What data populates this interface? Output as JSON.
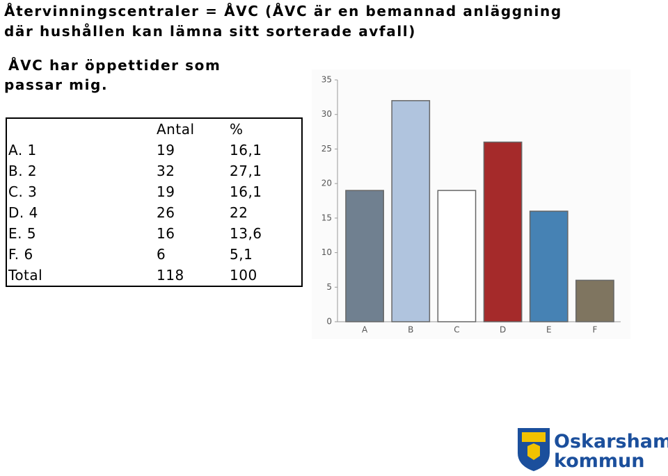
{
  "title": "Återvinningscentraler = ÅVC (ÅVC är en bemannad anläggning där hushållen kan lämna sitt sorterade avfall)",
  "question": "ÅVC har öppettider som passar mig.",
  "table": {
    "header": [
      "Antal",
      "%"
    ],
    "rows": [
      [
        "A. 1",
        "19",
        "16,1"
      ],
      [
        "B. 2",
        "32",
        "27,1"
      ],
      [
        "C. 3",
        "19",
        "16,1"
      ],
      [
        "D. 4",
        "26",
        "22"
      ],
      [
        "E. 5",
        "16",
        "13,6"
      ],
      [
        "F. 6",
        "6",
        "5,1"
      ],
      [
        "Total",
        "118",
        "100"
      ]
    ]
  },
  "chart_data": {
    "type": "bar",
    "categories": [
      "A",
      "B",
      "C",
      "D",
      "E",
      "F"
    ],
    "values": [
      19,
      32,
      19,
      26,
      16,
      6
    ],
    "colors": [
      "#708090",
      "#b0c4de",
      "#ffffff",
      "#a52a2a",
      "#4682b4",
      "#7f7560"
    ],
    "ylim": [
      0,
      35
    ],
    "yticks": [
      0,
      5,
      10,
      15,
      20,
      25,
      30,
      35
    ],
    "grid": false
  },
  "logo": {
    "lines": [
      "Oskarshamns",
      "kommun"
    ]
  }
}
